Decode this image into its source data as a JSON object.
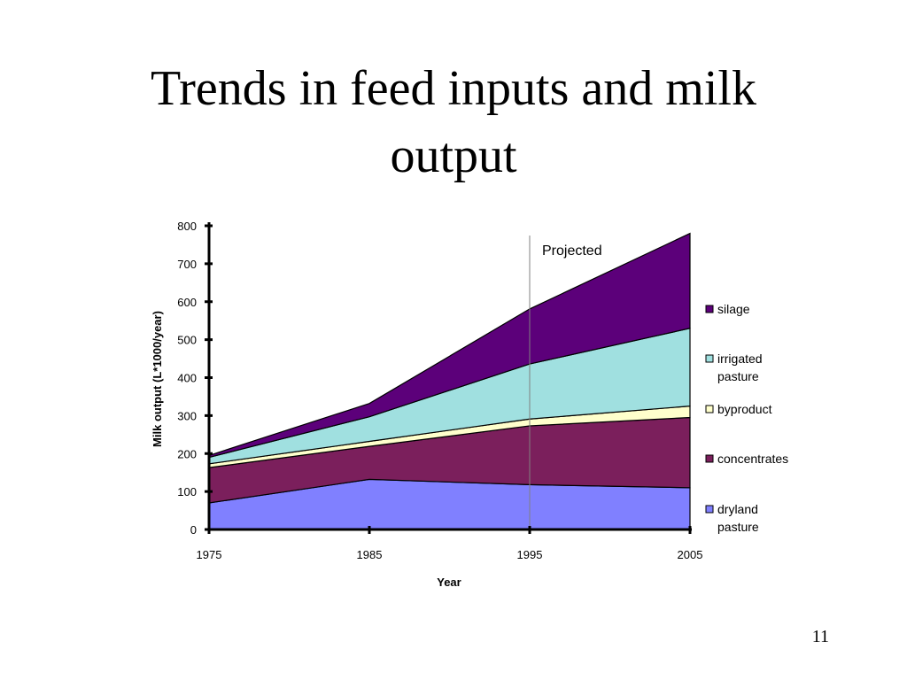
{
  "slide": {
    "title_line1": "Trends in feed inputs and milk",
    "title_line2": "output",
    "page_number": "11"
  },
  "chart_data": {
    "type": "area",
    "stacked": true,
    "title": "Trends in feed inputs and milk output",
    "xlabel": "Year",
    "ylabel": "Milk output (L*1000/year)",
    "x": [
      1975,
      1985,
      1995,
      2005
    ],
    "xlim": [
      1975,
      2005
    ],
    "ylim": [
      0,
      800
    ],
    "y_ticks": [
      0,
      100,
      200,
      300,
      400,
      500,
      600,
      700,
      800
    ],
    "grid": false,
    "legend_position": "right",
    "projection": {
      "x": 1995,
      "label": "Projected"
    },
    "series": [
      {
        "name": "dryland pasture",
        "values": [
          70,
          132,
          118,
          110
        ],
        "color": "#8080ff"
      },
      {
        "name": "concentrates",
        "values": [
          93,
          87,
          155,
          185
        ],
        "color": "#7b1f5c"
      },
      {
        "name": "byproduct",
        "values": [
          10,
          13,
          18,
          30
        ],
        "color": "#ffffcc"
      },
      {
        "name": "irrigated pasture",
        "values": [
          17,
          65,
          145,
          205
        ],
        "color": "#a0e0e0"
      },
      {
        "name": "silage",
        "values": [
          5,
          35,
          145,
          250
        ],
        "color": "#5c007a"
      }
    ]
  }
}
